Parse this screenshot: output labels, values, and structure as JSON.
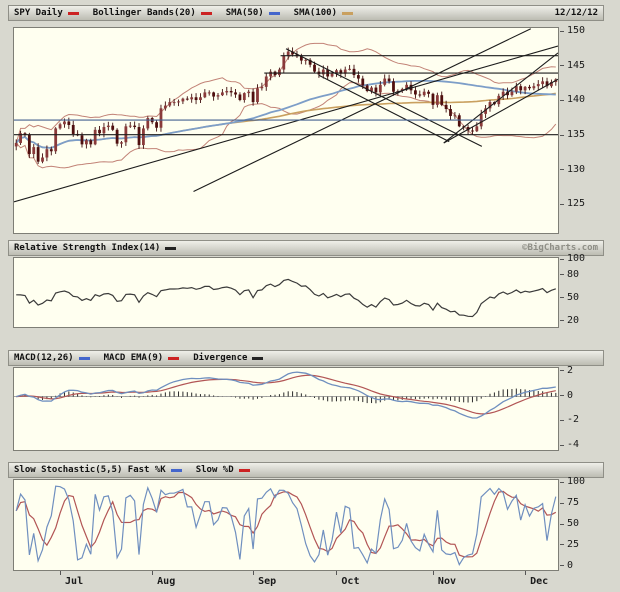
{
  "header": {
    "symbol_label": "SPY Daily",
    "bollinger_label": "Bollinger Bands(20)",
    "sma50_label": "SMA(50)",
    "sma100_label": "SMA(100)",
    "date": "12/12/12"
  },
  "rsi_header": {
    "label": "Relative Strength Index(14)",
    "copyright": "©BigCharts.com"
  },
  "macd_header": {
    "macd_label": "MACD(12,26)",
    "ema_label": "MACD EMA(9)",
    "divergence_label": "Divergence"
  },
  "stoch_header": {
    "k_label": "Slow Stochastic(5,5) Fast %K",
    "d_label": "Slow %D"
  },
  "colors": {
    "page_bg": "#d8d8cf",
    "panel_bg": "#fffff0",
    "candle_up": "#8a3a3a",
    "candle_down": "#4f0f0f",
    "candle_wick": "#3d0d0d",
    "bollinger": "#c28377",
    "sma50": "#7d9ec8",
    "sma100": "#c9a05f",
    "trendline": "#1c1c1c",
    "rsi": "#3a3a3a",
    "macd": "#6f8fbf",
    "macd_ema": "#b25555",
    "divergence": "#2a2a2a",
    "stoch_k": "#6f8fbf",
    "stoch_d": "#b25555",
    "swatch_red": "#cc2222",
    "swatch_blue": "#4466cc",
    "swatch_tan": "#c9a05f",
    "swatch_black": "#222222"
  },
  "axes": {
    "price_ticks": [
      150,
      145,
      140,
      135,
      130,
      125
    ],
    "price_range": [
      121.0,
      150.6
    ],
    "rsi_ticks": [
      100,
      80,
      50,
      20
    ],
    "rsi_range": [
      13,
      103
    ],
    "macd_ticks": [
      2,
      0,
      -2,
      -4
    ],
    "macd_range": [
      -4.3,
      2.3
    ],
    "stoch_ticks": [
      100,
      75,
      50,
      25,
      0
    ],
    "stoch_range": [
      -4,
      104
    ],
    "months": [
      "Jul",
      "Aug",
      "Sep",
      "Oct",
      "Nov",
      "Dec"
    ],
    "month_start_indices": [
      10,
      31,
      54,
      73,
      95,
      116
    ]
  },
  "chart_data": [
    {
      "type": "candlestick",
      "title": "SPY Daily",
      "legend": [
        "SPY Daily",
        "Bollinger Bands(20)",
        "SMA(50)",
        "SMA(100)"
      ],
      "ylim": [
        125,
        150
      ],
      "yticks": [
        150,
        145,
        140,
        135,
        130,
        125
      ],
      "x_months": [
        "Jul",
        "Aug",
        "Sep",
        "Oct",
        "Nov",
        "Dec"
      ],
      "closes": [
        134.0,
        135.4,
        135.2,
        132.4,
        133.4,
        131.3,
        131.9,
        133.1,
        132.8,
        136.1,
        136.7,
        137.1,
        136.6,
        135.3,
        135.1,
        133.8,
        134.4,
        133.8,
        135.9,
        135.4,
        136.3,
        136.5,
        135.9,
        133.9,
        134.1,
        136.4,
        136.5,
        136.3,
        133.7,
        136.1,
        137.6,
        137.0,
        136.2,
        139.0,
        139.4,
        139.9,
        139.9,
        140.0,
        140.4,
        140.3,
        140.6,
        140.2,
        140.6,
        141.3,
        141.3,
        140.7,
        140.9,
        141.3,
        141.5,
        141.3,
        141.0,
        140.2,
        141.2,
        141.4,
        139.9,
        141.9,
        142.1,
        143.6,
        144.3,
        143.8,
        144.6,
        146.6,
        147.2,
        146.8,
        146.5,
        145.9,
        146.0,
        145.3,
        144.3,
        143.9,
        144.6,
        143.6,
        144.0,
        144.5,
        144.0,
        144.6,
        144.7,
        143.8,
        143.3,
        142.3,
        141.5,
        142.0,
        141.3,
        142.4,
        143.3,
        142.9,
        141.4,
        141.5,
        141.8,
        142.4,
        141.6,
        141.0,
        140.9,
        141.4,
        141.1,
        139.5,
        140.9,
        139.5,
        138.9,
        137.9,
        138.0,
        136.4,
        136.3,
        135.8,
        135.7,
        136.4,
        138.2,
        139.0,
        139.9,
        139.6,
        140.8,
        141.4,
        140.9,
        141.4,
        142.2,
        141.6,
        142.1,
        141.9,
        142.2,
        142.5,
        142.9,
        142.2,
        142.8,
        143.2
      ],
      "trendlines": [
        {
          "x1": 0.0,
          "y1": 125.5,
          "x2": 1.0,
          "y2": 148.0
        },
        {
          "x1": 0.33,
          "y1": 127.0,
          "x2": 0.95,
          "y2": 150.5
        },
        {
          "x1": 0.5,
          "y1": 147.6,
          "x2": 0.86,
          "y2": 133.5
        },
        {
          "x1": 0.56,
          "y1": 143.8,
          "x2": 0.8,
          "y2": 134.2
        },
        {
          "x1": 0.79,
          "y1": 134.0,
          "x2": 1.0,
          "y2": 147.0
        },
        {
          "x1": 0.79,
          "y1": 134.0,
          "x2": 1.0,
          "y2": 143.2
        },
        {
          "x1": 0.49,
          "y1": 146.6,
          "x2": 1.0,
          "y2": 146.6
        },
        {
          "x1": 0.46,
          "y1": 144.1,
          "x2": 1.0,
          "y2": 144.1
        },
        {
          "x1": 0.0,
          "y1": 135.2,
          "x2": 1.0,
          "y2": 135.2
        },
        {
          "x1": 0.0,
          "y1": 137.3,
          "x2": 0.86,
          "y2": 137.3,
          "color": "#44618f"
        }
      ]
    },
    {
      "type": "line",
      "title": "Relative Strength Index(14)",
      "ylim": [
        0,
        100
      ],
      "yticks": [
        100,
        80,
        50,
        20
      ],
      "period": 14,
      "derived_from": "closes"
    },
    {
      "type": "line+bar",
      "title": "MACD(12,26), MACD EMA(9), Divergence",
      "ylim": [
        -4,
        2
      ],
      "yticks": [
        2,
        0,
        -2,
        -4
      ],
      "params": {
        "fast": 12,
        "slow": 26,
        "signal": 9
      },
      "derived_from": "closes"
    },
    {
      "type": "line",
      "title": "Slow Stochastic(5,5)",
      "series": [
        "Fast %K",
        "Slow %D"
      ],
      "ylim": [
        0,
        100
      ],
      "yticks": [
        100,
        75,
        50,
        25,
        0
      ],
      "derived_from": "closes"
    }
  ]
}
